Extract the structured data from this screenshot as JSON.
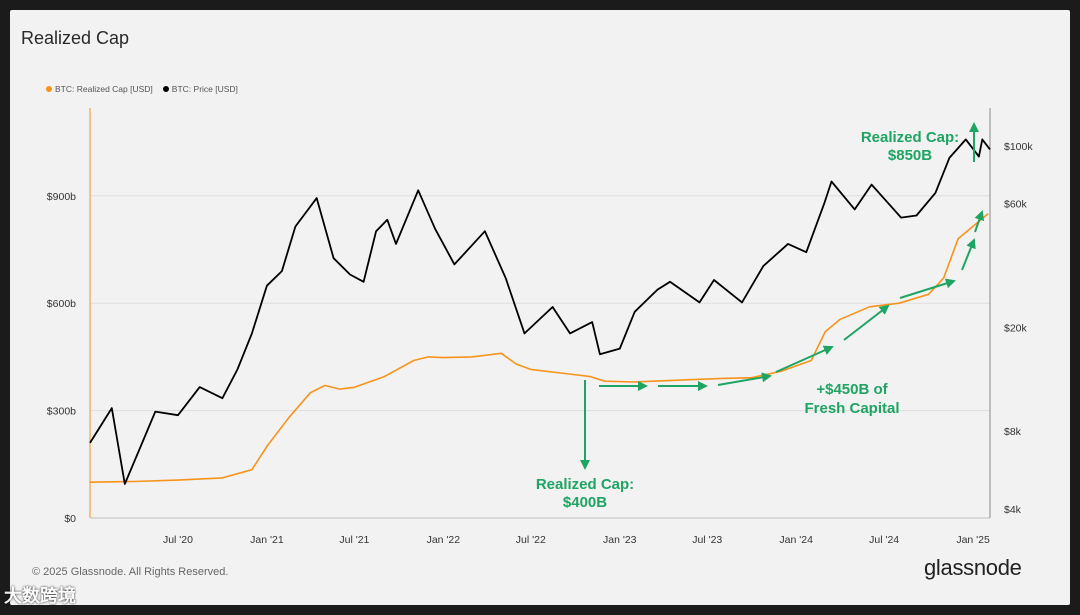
{
  "page": {
    "title": "Realized Cap",
    "copyright": "© 2025 Glassnode. All Rights Reserved.",
    "brand": "glassnode",
    "watermark": "大数跨境"
  },
  "legend": [
    {
      "label": "BTC: Realized Cap [USD]",
      "color": "#f7931a"
    },
    {
      "label": "BTC: Price [USD]",
      "color": "#000000"
    }
  ],
  "annotations": {
    "top": [
      "Realized Cap:",
      "$850B"
    ],
    "bottom": [
      "Realized Cap:",
      "$400B"
    ],
    "middle": [
      "+$450B of",
      "Fresh Capital"
    ],
    "color": "#1fa463"
  },
  "chart_data": {
    "type": "line",
    "x_ticks": [
      "Jul '20",
      "Jan '21",
      "Jul '21",
      "Jan '22",
      "Jul '22",
      "Jan '23",
      "Jul '23",
      "Jan '24",
      "Jul '24",
      "Jan '25"
    ],
    "y_left_ticks": [
      "$0",
      "$300b",
      "$600b",
      "$900b"
    ],
    "y_left_values": [
      0,
      300,
      600,
      900
    ],
    "y_right_ticks": [
      "$4k",
      "$8k",
      "$20k",
      "$60k",
      "$100k"
    ],
    "y_right_values": [
      4000,
      8000,
      20000,
      60000,
      100000
    ],
    "y_right_scale": "log",
    "x_range": [
      "2020-01-01",
      "2025-02-05"
    ],
    "series": [
      {
        "name": "BTC: Realized Cap [USD]",
        "axis": "left",
        "unit": "billion USD",
        "color": "#f7931a",
        "points": [
          [
            "2020-01-01",
            100
          ],
          [
            "2020-04-01",
            102
          ],
          [
            "2020-07-01",
            106
          ],
          [
            "2020-10-01",
            112
          ],
          [
            "2020-12-01",
            135
          ],
          [
            "2021-01-01",
            200
          ],
          [
            "2021-02-15",
            280
          ],
          [
            "2021-04-01",
            350
          ],
          [
            "2021-05-01",
            370
          ],
          [
            "2021-06-01",
            360
          ],
          [
            "2021-07-01",
            365
          ],
          [
            "2021-09-01",
            395
          ],
          [
            "2021-11-01",
            440
          ],
          [
            "2021-12-01",
            450
          ],
          [
            "2022-01-01",
            448
          ],
          [
            "2022-03-01",
            450
          ],
          [
            "2022-05-01",
            460
          ],
          [
            "2022-06-01",
            430
          ],
          [
            "2022-07-01",
            415
          ],
          [
            "2022-09-01",
            405
          ],
          [
            "2022-11-01",
            395
          ],
          [
            "2022-12-01",
            382
          ],
          [
            "2023-02-01",
            380
          ],
          [
            "2023-05-01",
            385
          ],
          [
            "2023-08-01",
            390
          ],
          [
            "2023-10-01",
            392
          ],
          [
            "2023-12-01",
            410
          ],
          [
            "2024-02-01",
            440
          ],
          [
            "2024-03-01",
            520
          ],
          [
            "2024-04-01",
            555
          ],
          [
            "2024-06-01",
            590
          ],
          [
            "2024-08-01",
            600
          ],
          [
            "2024-10-01",
            625
          ],
          [
            "2024-11-01",
            670
          ],
          [
            "2024-12-01",
            780
          ],
          [
            "2025-02-01",
            850
          ]
        ]
      },
      {
        "name": "BTC: Price [USD]",
        "axis": "right",
        "unit": "USD",
        "color": "#000000",
        "points": [
          [
            "2020-01-01",
            7200
          ],
          [
            "2020-02-15",
            9800
          ],
          [
            "2020-03-13",
            5000
          ],
          [
            "2020-04-15",
            7000
          ],
          [
            "2020-05-15",
            9500
          ],
          [
            "2020-07-01",
            9200
          ],
          [
            "2020-08-15",
            11800
          ],
          [
            "2020-10-01",
            10700
          ],
          [
            "2020-11-01",
            13800
          ],
          [
            "2020-12-01",
            19000
          ],
          [
            "2021-01-01",
            29000
          ],
          [
            "2021-02-01",
            33000
          ],
          [
            "2021-03-01",
            49000
          ],
          [
            "2021-04-14",
            63000
          ],
          [
            "2021-05-19",
            37000
          ],
          [
            "2021-06-22",
            32000
          ],
          [
            "2021-07-20",
            30000
          ],
          [
            "2021-08-15",
            47000
          ],
          [
            "2021-09-07",
            52000
          ],
          [
            "2021-09-25",
            42000
          ],
          [
            "2021-11-10",
            67500
          ],
          [
            "2021-12-15",
            48000
          ],
          [
            "2022-01-24",
            35000
          ],
          [
            "2022-03-28",
            47000
          ],
          [
            "2022-05-10",
            31000
          ],
          [
            "2022-06-18",
            19000
          ],
          [
            "2022-08-15",
            24000
          ],
          [
            "2022-09-20",
            19000
          ],
          [
            "2022-11-05",
            21000
          ],
          [
            "2022-11-21",
            15800
          ],
          [
            "2023-01-01",
            16600
          ],
          [
            "2023-02-01",
            23000
          ],
          [
            "2023-03-20",
            28000
          ],
          [
            "2023-04-15",
            30000
          ],
          [
            "2023-06-15",
            25000
          ],
          [
            "2023-07-15",
            30500
          ],
          [
            "2023-09-11",
            25000
          ],
          [
            "2023-10-25",
            34500
          ],
          [
            "2023-12-15",
            42000
          ],
          [
            "2024-01-22",
            39000
          ],
          [
            "2024-02-28",
            60000
          ],
          [
            "2024-03-14",
            73000
          ],
          [
            "2024-05-01",
            57000
          ],
          [
            "2024-06-05",
            71000
          ],
          [
            "2024-08-05",
            53000
          ],
          [
            "2024-09-06",
            54000
          ],
          [
            "2024-10-15",
            66000
          ],
          [
            "2024-11-13",
            90000
          ],
          [
            "2024-12-17",
            106000
          ],
          [
            "2025-01-13",
            91000
          ],
          [
            "2025-01-20",
            106000
          ],
          [
            "2025-02-05",
            97000
          ]
        ]
      }
    ]
  }
}
